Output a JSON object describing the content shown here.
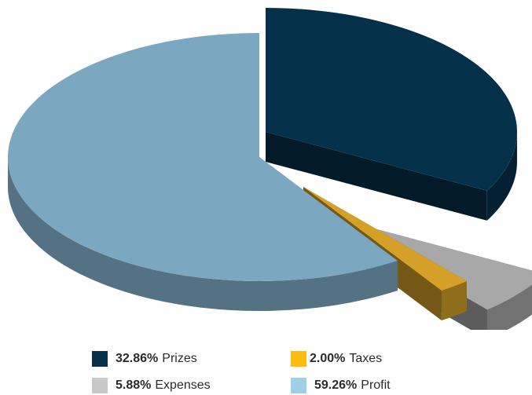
{
  "chart_data": {
    "type": "pie",
    "style": "3d-exploded",
    "slices": [
      {
        "label": "Prizes",
        "value": 32.86,
        "value_label": "32.86%",
        "color": "#05304a",
        "exploded": true
      },
      {
        "label": "Expenses",
        "value": 5.88,
        "value_label": "5.88%",
        "color": "#a7a8a7",
        "exploded": true
      },
      {
        "label": "Taxes",
        "value": 2.0,
        "value_label": "2.00%",
        "color": "#d4a027",
        "exploded": true
      },
      {
        "label": "Profit",
        "value": 59.26,
        "value_label": "59.26%",
        "color": "#7ba8c0",
        "exploded": false
      }
    ],
    "legend": [
      {
        "value_label": "32.86%",
        "label": "Prizes",
        "color": "#05304a"
      },
      {
        "value_label": "2.00%",
        "label": "Taxes",
        "color": "#fdbb10"
      },
      {
        "value_label": "5.88%",
        "label": "Expenses",
        "color": "#c8c8c8"
      },
      {
        "value_label": "59.26%",
        "label": "Profit",
        "color": "#9fd0ea"
      }
    ],
    "legend_position": "bottom"
  }
}
